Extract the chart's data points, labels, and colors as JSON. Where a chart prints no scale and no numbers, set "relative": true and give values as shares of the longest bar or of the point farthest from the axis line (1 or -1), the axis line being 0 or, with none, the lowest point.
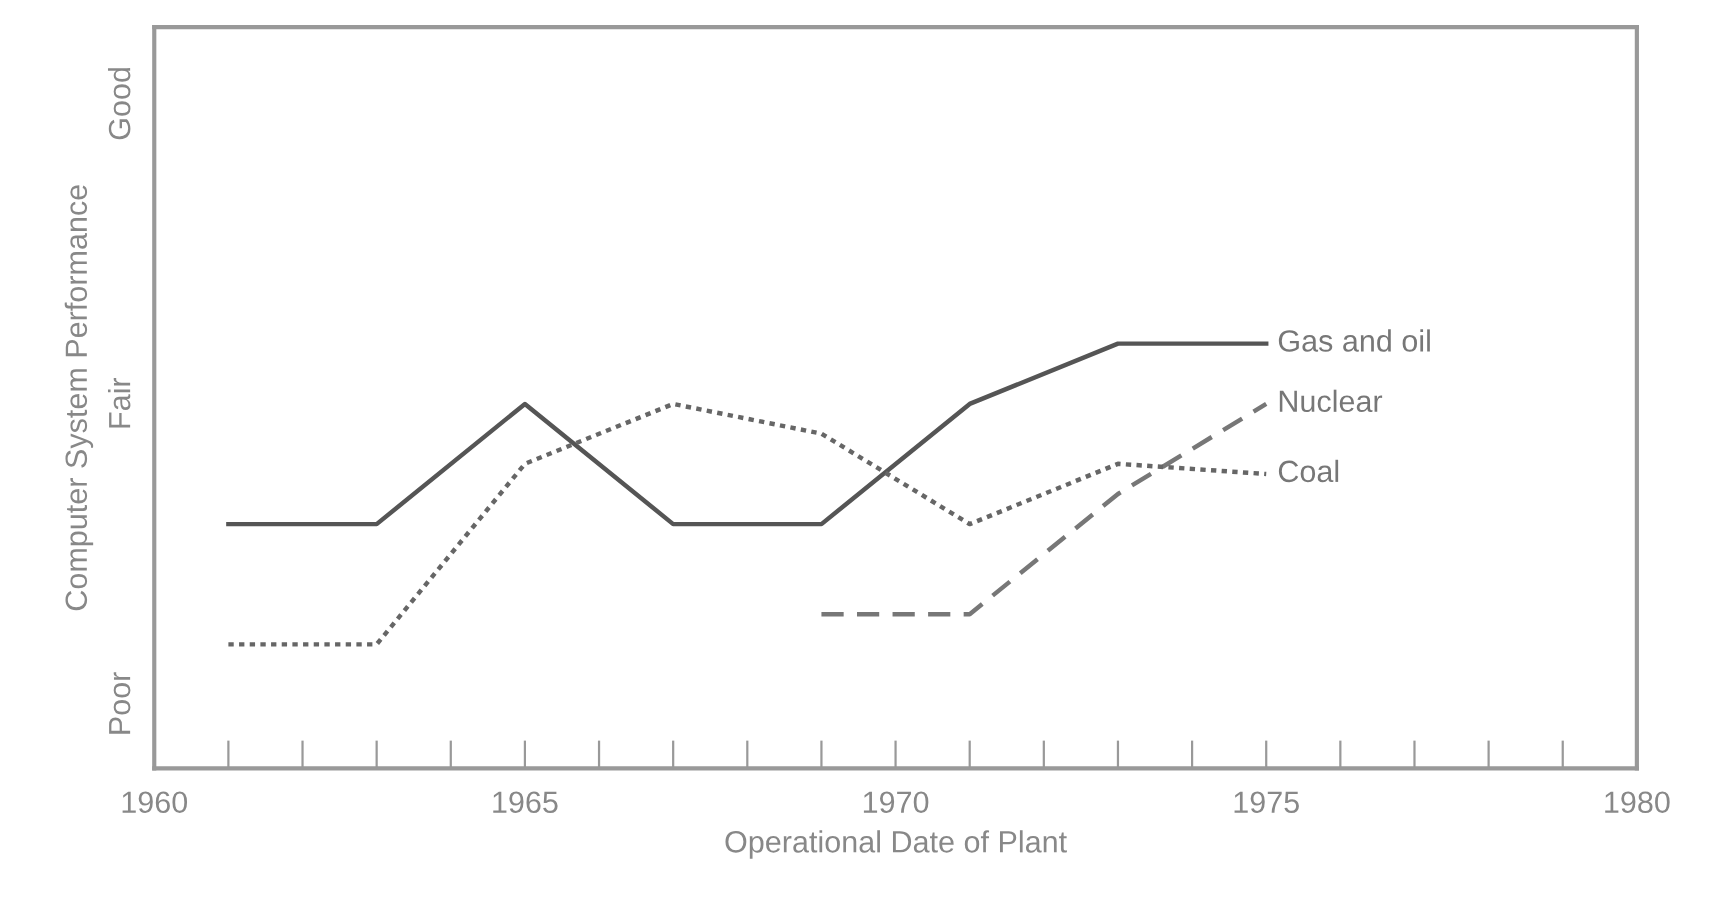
{
  "chart_data": {
    "type": "line",
    "xlabel": "Operational Date of Plant",
    "ylabel": "Computer System Performance",
    "relative": true,
    "xlim": [
      1960,
      1980
    ],
    "xticks": [
      1960,
      {
        "value": 1961,
        "label": null
      },
      {
        "value": 1962,
        "label": null
      },
      {
        "value": 1963,
        "label": null
      },
      {
        "value": 1964,
        "label": null
      },
      1965,
      {
        "value": 1966,
        "label": null
      },
      {
        "value": 1967,
        "label": null
      },
      {
        "value": 1968,
        "label": null
      },
      {
        "value": 1969,
        "label": null
      },
      1970,
      {
        "value": 1971,
        "label": null
      },
      {
        "value": 1972,
        "label": null
      },
      {
        "value": 1973,
        "label": null
      },
      {
        "value": 1974,
        "label": null
      },
      1975,
      {
        "value": 1976,
        "label": null
      },
      {
        "value": 1977,
        "label": null
      },
      {
        "value": 1978,
        "label": null
      },
      {
        "value": 1979,
        "label": null
      },
      1980
    ],
    "annotations": [
      "Poor",
      "Fair",
      "Good"
    ],
    "grid": false,
    "legend": false,
    "marker": "none",
    "series": [
      {
        "name": "Gas and oil",
        "color": "#555555",
        "line_style": "solid",
        "x": [
          1961,
          1963,
          1965,
          1967,
          1969,
          1971,
          1973,
          1975
        ],
        "values": [
          0.575,
          0.575,
          0.858,
          0.575,
          0.575,
          0.858,
          1,
          1
        ]
      },
      {
        "name": "Nuclear",
        "color": "#777777",
        "line_style": "dashed",
        "x": [
          1969,
          1971,
          1973,
          1975
        ],
        "values": [
          0.363,
          0.363,
          0.646,
          0.858
        ]
      },
      {
        "name": "Coal",
        "color": "#666666",
        "line_style": "dotted",
        "x": [
          1961,
          1963,
          1965,
          1967,
          1969,
          1971,
          1973,
          1975
        ],
        "values": [
          0.292,
          0.292,
          0.717,
          0.858,
          0.788,
          0.575,
          0.717,
          0.693
        ]
      }
    ]
  }
}
